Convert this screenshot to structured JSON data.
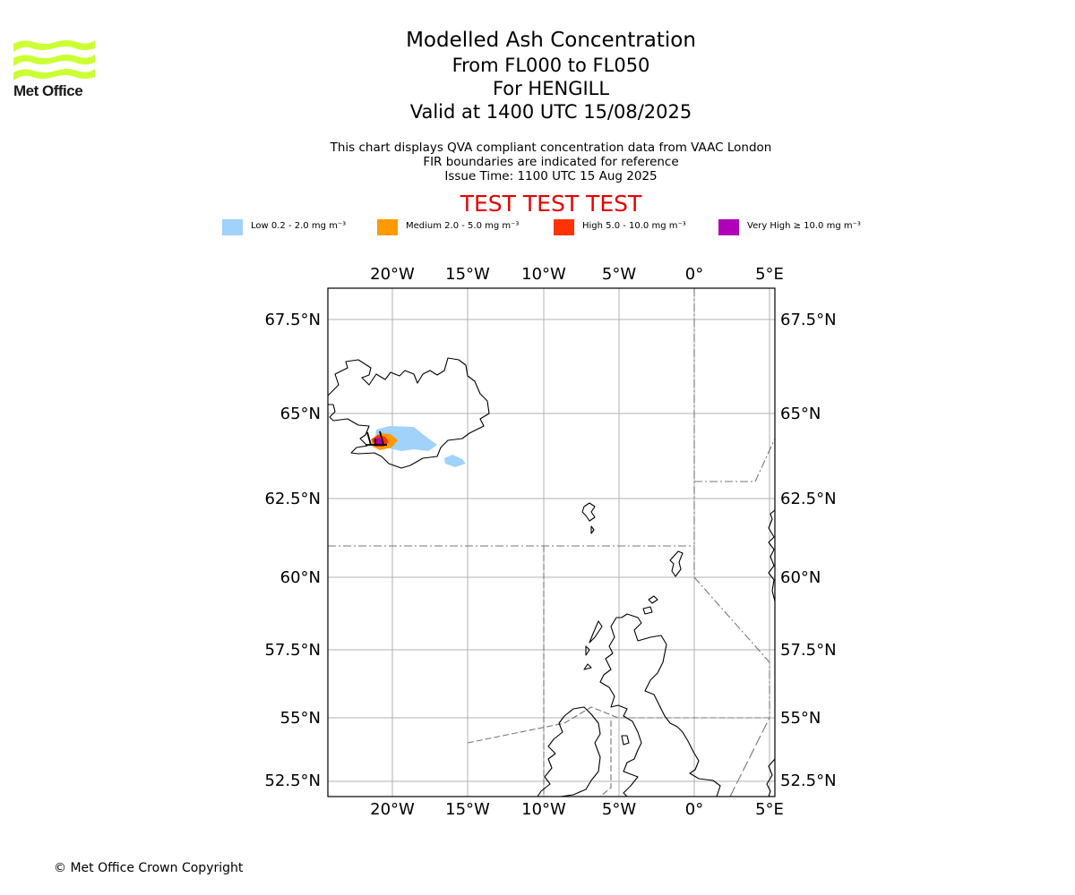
{
  "logo": {
    "text": "Met Office",
    "color": "#ccff33"
  },
  "title": {
    "line1": "Modelled Ash Concentration",
    "line2": "From FL000 to FL050",
    "line3": "For HENGILL",
    "line4": "Valid at 1400 UTC 15/08/2025"
  },
  "subtitle": {
    "line1": "This chart displays QVA compliant concentration data from VAAC London",
    "line2": "FIR boundaries are indicated for reference",
    "line3": "Issue Time: 1100 UTC 15 Aug 2025"
  },
  "test_banner": "TEST TEST TEST",
  "legend": [
    {
      "label": "Low 0.2 - 2.0 mg m⁻³",
      "color": "#a0d2fa"
    },
    {
      "label": "Medium 2.0 - 5.0 mg m⁻³",
      "color": "#ff9a00"
    },
    {
      "label": "High 5.0 - 10.0 mg m⁻³",
      "color": "#ff3300"
    },
    {
      "label": "Very High ≥ 10.0 mg m⁻³",
      "color": "#b000b8"
    }
  ],
  "map": {
    "lon_ticks": [
      "20°W",
      "15°W",
      "10°W",
      "5°W",
      "0°",
      "5°E"
    ],
    "lat_ticks": [
      "67.5°N",
      "65°N",
      "62.5°N",
      "60°N",
      "57.5°N",
      "55°N",
      "52.5°N"
    ],
    "extent": {
      "lon_min": -24.3,
      "lon_max": 5.3,
      "lat_min": 52.0,
      "lat_max": 68.0
    }
  },
  "footer": "© Met Office Crown Copyright"
}
